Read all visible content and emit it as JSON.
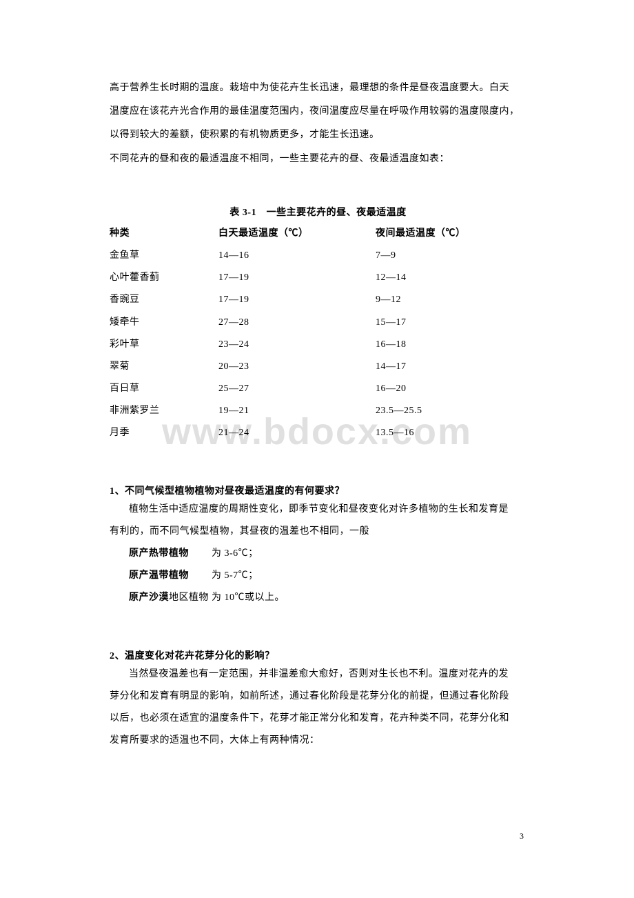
{
  "watermark": "www.bdocx.com",
  "intro": {
    "line1": "高于营养生长时期的温度。栽培中为使花卉生长迅速，最理想的条件是昼夜温度要大。白天",
    "line2": "温度应在该花卉光合作用的最佳温度范围内，夜间温度应尽量在呼吸作用较弱的温度限度内，",
    "line3": "以得到较大的差额，使积累的有机物质更多，才能生长迅速。",
    "line4": "不同花卉的昼和夜的最适温度不相同，一些主要花卉的昼、夜最适温度如表："
  },
  "table": {
    "title": "表 3-1　一些主要花卉的昼、夜最适温度",
    "headers": {
      "col1": "种类",
      "col2": "白天最适温度（℃）",
      "col3": "夜间最适温度（℃）"
    },
    "rows": [
      {
        "name": "金鱼草",
        "day": "14—16",
        "night": "7—9"
      },
      {
        "name": "心叶藿香蓟",
        "day": "17—19",
        "night": "12—14"
      },
      {
        "name": "香豌豆",
        "day": "17—19",
        "night": "9—12"
      },
      {
        "name": "矮牵牛",
        "day": "27—28",
        "night": "15—17"
      },
      {
        "name": "彩叶草",
        "day": "23—24",
        "night": "16—18"
      },
      {
        "name": "翠菊",
        "day": "20—23",
        "night": "14—17"
      },
      {
        "name": "百日草",
        "day": "25—27",
        "night": "16—20"
      },
      {
        "name": "非洲紫罗兰",
        "day": "19—21",
        "night": "23.5—25.5"
      },
      {
        "name": "月季",
        "day": "21—24",
        "night": "13.5—16"
      }
    ]
  },
  "section1": {
    "heading": "1、不同气候型植物植物对昼夜最适温度的有何要求？",
    "para1": "植物生活中适应温度的周期性变化，即季节变化和昼夜变化对许多植物的生长和发育是",
    "para2": "有利的，而不同气候型植物，其昼夜的温差也不相同，一般",
    "rows": [
      {
        "label_bold": "原产热带植物",
        "label_rest": "",
        "value": "为 3-6℃；"
      },
      {
        "label_bold": "原产温带植物",
        "label_rest": "",
        "value": "为 5-7℃；"
      },
      {
        "label_bold": "原产沙漠",
        "label_rest": "地区植物",
        "value": "为 10℃或以上。"
      }
    ]
  },
  "section2": {
    "heading": "2、温度变化对花卉花芽分化的影响？",
    "para1": "当然昼夜温差也有一定范围，并非温差愈大愈好，否则对生长也不利。温度对花卉的发",
    "para2": "芽分化和发育有明显的影响，如前所述，通过春化阶段是花芽分化的前提，但通过春化阶段",
    "para3": "以后，也必须在适宜的温度条件下，花芽才能正常分化和发育，花卉种类不同，花芽分化和",
    "para4": "发育所要求的适温也不同，大体上有两种情况："
  },
  "pageNumber": "3"
}
